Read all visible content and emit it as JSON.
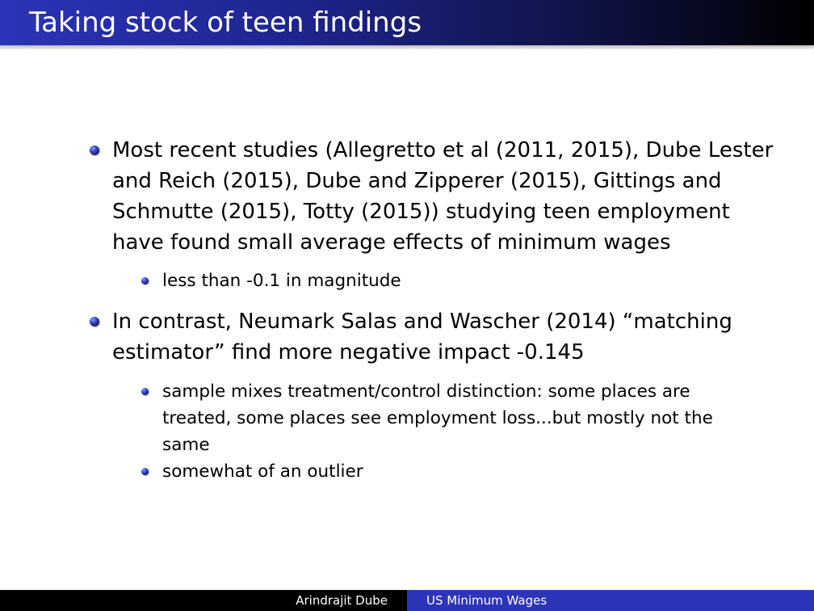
{
  "slide": {
    "title": "Taking stock of teen findings"
  },
  "bullets": [
    {
      "text": "Most recent studies (Allegretto et al (2011, 2015), Dube Lester and Reich (2015), Dube and Zipperer (2015), Gittings and Schmutte (2015), Totty (2015)) studying teen employment have found small average effects of minimum wages",
      "sub": [
        "less than -0.1 in magnitude"
      ]
    },
    {
      "text": "In contrast, Neumark Salas and Wascher (2014) “matching estimator” find more negative impact -0.145",
      "sub": [
        "sample mixes treatment/control distinction: some places are treated, some places see employment loss...but mostly not the same",
        "somewhat of an outlier"
      ]
    }
  ],
  "footer": {
    "author": "Arindrajit Dube",
    "title": "US Minimum Wages"
  },
  "colors": {
    "title_bar_start": "#2c34b8",
    "title_bar_end": "#000000",
    "footer_left": "#000000",
    "footer_right": "#2c34b8",
    "bullet": "#2c34b8"
  }
}
